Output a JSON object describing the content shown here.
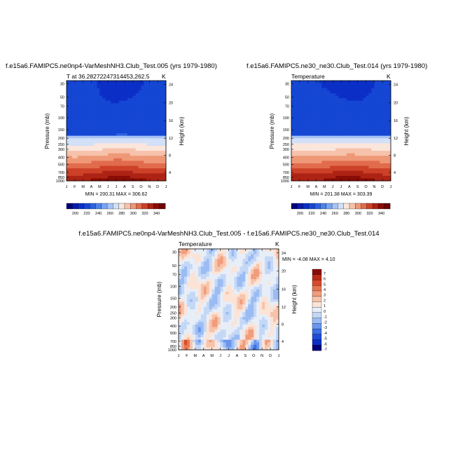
{
  "chart_data": [
    {
      "type": "heatmap",
      "panel": "left",
      "title": "f.e15a6.FAMIPC5.ne0np4-VarMeshNH3.Club_Test.005 (yrs 1979-1980)",
      "subtitle": "T at 36.28272247314453,262.5",
      "units": "K",
      "xlabel": "",
      "ylabel": "Pressure (mb)",
      "ylabel_right": "Height (km)",
      "x_ticks": [
        "J",
        "F",
        "M",
        "A",
        "M",
        "J",
        "J",
        "A",
        "S",
        "O",
        "N",
        "D",
        "J"
      ],
      "y_ticks": [
        "30",
        "50",
        "70",
        "100",
        "150",
        "200",
        "250",
        "300",
        "400",
        "500",
        "700",
        "850",
        "1000"
      ],
      "y_ticks_right": [
        "24",
        "20",
        "16",
        "12",
        "8",
        "4"
      ],
      "stats": "MIN = 200.31 MAX = 306.62",
      "colorbar_labels": [
        "200",
        "220",
        "240",
        "260",
        "280",
        "300",
        "320",
        "340"
      ]
    },
    {
      "type": "heatmap",
      "panel": "right",
      "title": "f.e15a6.FAMIPC5.ne30_ne30.Club_Test.014 (yrs 1979-1980)",
      "subtitle": "Temperature",
      "units": "K",
      "xlabel": "",
      "ylabel": "Pressure (mb)",
      "ylabel_right": "Height (km)",
      "x_ticks": [
        "J",
        "F",
        "M",
        "A",
        "M",
        "J",
        "J",
        "A",
        "S",
        "O",
        "N",
        "D",
        "J"
      ],
      "y_ticks": [
        "30",
        "50",
        "70",
        "100",
        "150",
        "200",
        "250",
        "300",
        "400",
        "500",
        "700",
        "850",
        "1000"
      ],
      "y_ticks_right": [
        "24",
        "20",
        "16",
        "12",
        "8",
        "4"
      ],
      "stats": "MIN = 201.38 MAX = 303.39",
      "colorbar_labels": [
        "200",
        "220",
        "240",
        "260",
        "280",
        "300",
        "320",
        "340"
      ]
    },
    {
      "type": "heatmap",
      "panel": "diff",
      "title": "f.e15a6.FAMIPC5.ne0np4-VarMeshNH3.Club_Test.005 - f.e15a6.FAMIPC5.ne30_ne30.Club_Test.014",
      "subtitle": "Temperature",
      "units": "K",
      "xlabel": "",
      "ylabel": "Pressure (mb)",
      "ylabel_right": "Height (km)",
      "x_ticks": [
        "J",
        "F",
        "M",
        "A",
        "M",
        "J",
        "J",
        "A",
        "S",
        "O",
        "N",
        "D",
        "J"
      ],
      "y_ticks": [
        "30",
        "50",
        "70",
        "100",
        "150",
        "200",
        "250",
        "300",
        "400",
        "500",
        "700",
        "850",
        "1000"
      ],
      "y_ticks_right": [
        "24",
        "20",
        "16",
        "12",
        "8",
        "4"
      ],
      "stats": "MIN =  -4.08 MAX =   4.10",
      "colorbar_labels": [
        "7",
        "6",
        "5",
        "4",
        "3",
        "2",
        "1",
        "0",
        "-1",
        "-2",
        "-3",
        "-4",
        "-5",
        "-6",
        "-7"
      ]
    }
  ],
  "colors": {
    "temp_palette": [
      "#00007a",
      "#0a1bab",
      "#0b2fc6",
      "#1546d4",
      "#2d62e0",
      "#4d82ea",
      "#78a3f0",
      "#a7c3f4",
      "#d2e0f8",
      "#fbe6dc",
      "#f6c2ab",
      "#ee9877",
      "#e16c4d",
      "#cc4128",
      "#ad2314",
      "#8a0c06",
      "#6a0000"
    ],
    "diff_palette": [
      "#00007a",
      "#0b2fc6",
      "#1c4ed8",
      "#3c70e4",
      "#6a96ee",
      "#9bbcf3",
      "#c4d8f6",
      "#e8eef8",
      "#fbe3d6",
      "#f7c3aa",
      "#f19d7d",
      "#e6754f",
      "#d84a2b",
      "#bb2b16",
      "#8a0c06"
    ]
  }
}
